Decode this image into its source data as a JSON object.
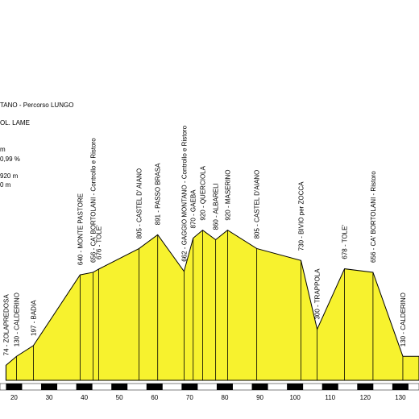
{
  "chart_data": {
    "type": "area",
    "title": "TANO - Percorso LUNGO",
    "info_lines": [
      "OL. LAME",
      "m",
      "0,99 %",
      "920 m",
      "0 m"
    ],
    "x": [
      17.7,
      20.7,
      25.5,
      38.8,
      42.5,
      44.1,
      55.6,
      60.9,
      68.4,
      71,
      73.7,
      77.4,
      80.8,
      89.1,
      101.7,
      106.3,
      114.1,
      122.2,
      130.7
    ],
    "values": [
      74,
      130,
      197,
      640,
      656,
      676,
      805,
      891,
      662,
      870,
      920,
      860,
      920,
      805,
      730,
      300,
      678,
      656,
      130
    ],
    "value_labels": [
      "74 - ZOLAPREDOSA",
      "130 - CALDERINO",
      "197 - BADIA",
      "640 - MONTE PASTORE",
      "656 - CA' BORTOLANI - Controllo e Ristoro",
      "676 - TOLE'",
      "805 - CASTEL D' AIANO",
      "891 - PASSO BRASA",
      "662 - GAGGIO MONTANO - Controllo e Ristoro",
      "870 - GAEBA",
      "920 - QUERCIOLA",
      "860 - ALBARELI",
      "920 - MASERINO",
      "805 - CASTEL D'AIANO",
      "730 - BIVIO per ZOCCA",
      "300 - TRAPPOLA",
      "678 - TOLE'",
      "656 - CA' BORTOLANI - Ristoro",
      "130 - CALDERINO"
    ],
    "color": "#f7f22e",
    "xlim": [
      16,
      135.3
    ],
    "xticks": [
      20,
      30,
      40,
      50,
      60,
      70,
      80,
      90,
      100,
      110,
      120,
      130
    ],
    "ylim": [
      0,
      1700
    ]
  }
}
